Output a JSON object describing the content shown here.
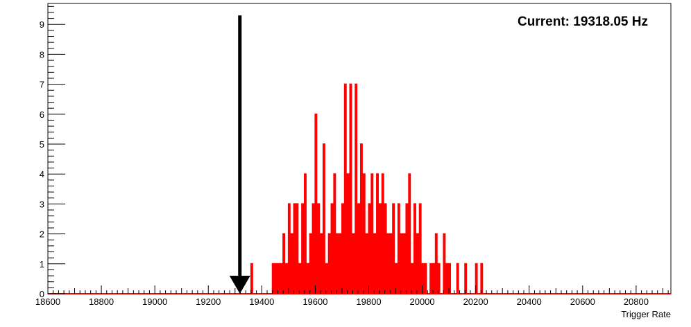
{
  "chart_data": {
    "type": "bar",
    "style": "step-histogram",
    "xlabel": "Trigger Rate",
    "ylabel": "",
    "xlim": [
      18600,
      20930
    ],
    "ylim": [
      0,
      9.7
    ],
    "x_ticks": [
      18600,
      18800,
      19000,
      19200,
      19400,
      19600,
      19800,
      20000,
      20200,
      20400,
      20600,
      20800
    ],
    "y_ticks": [
      0,
      1,
      2,
      3,
      4,
      5,
      6,
      7,
      8,
      9
    ],
    "bin_width": 5,
    "annotation": "Current: 19318.05 Hz",
    "marker_value": 19318.05,
    "series_color": "#ff0000",
    "arrow_color": "#000000",
    "grid": false,
    "bins": [
      [
        19360,
        1
      ],
      [
        19440,
        1
      ],
      [
        19450,
        1
      ],
      [
        19460,
        1
      ],
      [
        19470,
        1
      ],
      [
        19480,
        2
      ],
      [
        19490,
        1
      ],
      [
        19500,
        3
      ],
      [
        19510,
        2
      ],
      [
        19520,
        3
      ],
      [
        19530,
        3
      ],
      [
        19540,
        1
      ],
      [
        19550,
        3
      ],
      [
        19560,
        4
      ],
      [
        19570,
        1
      ],
      [
        19580,
        2
      ],
      [
        19590,
        3
      ],
      [
        19600,
        6
      ],
      [
        19610,
        3
      ],
      [
        19620,
        2
      ],
      [
        19630,
        5
      ],
      [
        19640,
        1
      ],
      [
        19650,
        2
      ],
      [
        19660,
        3
      ],
      [
        19670,
        4
      ],
      [
        19680,
        2
      ],
      [
        19690,
        2
      ],
      [
        19700,
        3
      ],
      [
        19710,
        7
      ],
      [
        19720,
        4
      ],
      [
        19730,
        7
      ],
      [
        19740,
        2
      ],
      [
        19750,
        7
      ],
      [
        19760,
        3
      ],
      [
        19770,
        5
      ],
      [
        19780,
        4
      ],
      [
        19790,
        2
      ],
      [
        19800,
        3
      ],
      [
        19810,
        4
      ],
      [
        19820,
        2
      ],
      [
        19830,
        4
      ],
      [
        19840,
        3
      ],
      [
        19850,
        4
      ],
      [
        19860,
        3
      ],
      [
        19870,
        2
      ],
      [
        19880,
        2
      ],
      [
        19890,
        3
      ],
      [
        19900,
        1
      ],
      [
        19910,
        3
      ],
      [
        19920,
        2
      ],
      [
        19930,
        2
      ],
      [
        19940,
        3
      ],
      [
        19950,
        4
      ],
      [
        19960,
        1
      ],
      [
        19970,
        3
      ],
      [
        19980,
        2
      ],
      [
        19990,
        3
      ],
      [
        20000,
        1
      ],
      [
        20010,
        1
      ],
      [
        20020,
        0
      ],
      [
        20030,
        1
      ],
      [
        20040,
        1
      ],
      [
        20050,
        2
      ],
      [
        20060,
        1
      ],
      [
        20070,
        0
      ],
      [
        20080,
        2
      ],
      [
        20090,
        1
      ],
      [
        20100,
        1
      ],
      [
        20110,
        0
      ],
      [
        20120,
        0
      ],
      [
        20130,
        1
      ],
      [
        20140,
        0
      ],
      [
        20150,
        0
      ],
      [
        20160,
        1
      ],
      [
        20170,
        0
      ],
      [
        20180,
        0
      ],
      [
        20190,
        0
      ],
      [
        20200,
        1
      ],
      [
        20210,
        0
      ],
      [
        20220,
        1
      ]
    ]
  }
}
